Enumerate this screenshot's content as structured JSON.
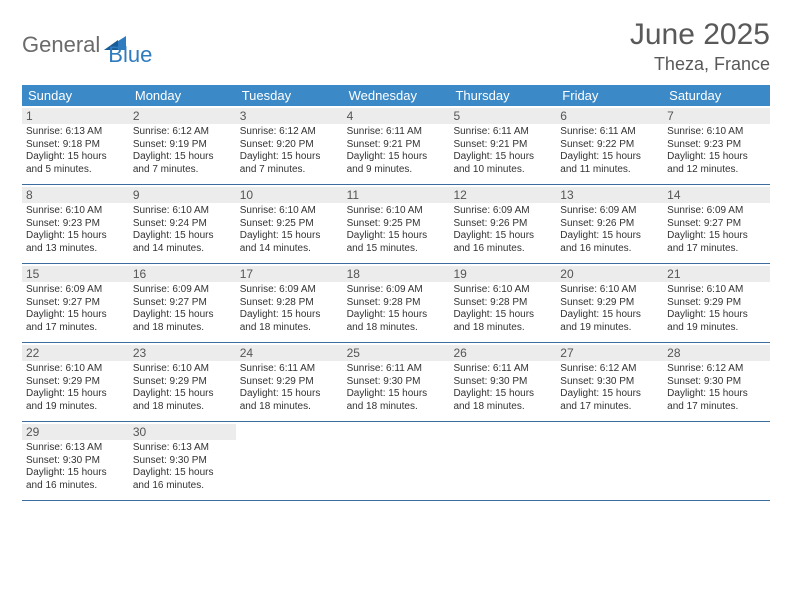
{
  "logo": {
    "text1": "General",
    "text2": "Blue"
  },
  "title": "June 2025",
  "location": "Theza, France",
  "colors": {
    "header_bg": "#3b89c7",
    "header_text": "#ffffff",
    "daynum_bg": "#ececec",
    "rule": "#3b6e9e",
    "title_color": "#595959",
    "logo_gray": "#6b6b6b",
    "logo_blue": "#2f7bbf"
  },
  "weekdays": [
    "Sunday",
    "Monday",
    "Tuesday",
    "Wednesday",
    "Thursday",
    "Friday",
    "Saturday"
  ],
  "weeks": [
    [
      {
        "n": "1",
        "sr": "6:13 AM",
        "ss": "9:18 PM",
        "dl": "15 hours and 5 minutes."
      },
      {
        "n": "2",
        "sr": "6:12 AM",
        "ss": "9:19 PM",
        "dl": "15 hours and 7 minutes."
      },
      {
        "n": "3",
        "sr": "6:12 AM",
        "ss": "9:20 PM",
        "dl": "15 hours and 7 minutes."
      },
      {
        "n": "4",
        "sr": "6:11 AM",
        "ss": "9:21 PM",
        "dl": "15 hours and 9 minutes."
      },
      {
        "n": "5",
        "sr": "6:11 AM",
        "ss": "9:21 PM",
        "dl": "15 hours and 10 minutes."
      },
      {
        "n": "6",
        "sr": "6:11 AM",
        "ss": "9:22 PM",
        "dl": "15 hours and 11 minutes."
      },
      {
        "n": "7",
        "sr": "6:10 AM",
        "ss": "9:23 PM",
        "dl": "15 hours and 12 minutes."
      }
    ],
    [
      {
        "n": "8",
        "sr": "6:10 AM",
        "ss": "9:23 PM",
        "dl": "15 hours and 13 minutes."
      },
      {
        "n": "9",
        "sr": "6:10 AM",
        "ss": "9:24 PM",
        "dl": "15 hours and 14 minutes."
      },
      {
        "n": "10",
        "sr": "6:10 AM",
        "ss": "9:25 PM",
        "dl": "15 hours and 14 minutes."
      },
      {
        "n": "11",
        "sr": "6:10 AM",
        "ss": "9:25 PM",
        "dl": "15 hours and 15 minutes."
      },
      {
        "n": "12",
        "sr": "6:09 AM",
        "ss": "9:26 PM",
        "dl": "15 hours and 16 minutes."
      },
      {
        "n": "13",
        "sr": "6:09 AM",
        "ss": "9:26 PM",
        "dl": "15 hours and 16 minutes."
      },
      {
        "n": "14",
        "sr": "6:09 AM",
        "ss": "9:27 PM",
        "dl": "15 hours and 17 minutes."
      }
    ],
    [
      {
        "n": "15",
        "sr": "6:09 AM",
        "ss": "9:27 PM",
        "dl": "15 hours and 17 minutes."
      },
      {
        "n": "16",
        "sr": "6:09 AM",
        "ss": "9:27 PM",
        "dl": "15 hours and 18 minutes."
      },
      {
        "n": "17",
        "sr": "6:09 AM",
        "ss": "9:28 PM",
        "dl": "15 hours and 18 minutes."
      },
      {
        "n": "18",
        "sr": "6:09 AM",
        "ss": "9:28 PM",
        "dl": "15 hours and 18 minutes."
      },
      {
        "n": "19",
        "sr": "6:10 AM",
        "ss": "9:28 PM",
        "dl": "15 hours and 18 minutes."
      },
      {
        "n": "20",
        "sr": "6:10 AM",
        "ss": "9:29 PM",
        "dl": "15 hours and 19 minutes."
      },
      {
        "n": "21",
        "sr": "6:10 AM",
        "ss": "9:29 PM",
        "dl": "15 hours and 19 minutes."
      }
    ],
    [
      {
        "n": "22",
        "sr": "6:10 AM",
        "ss": "9:29 PM",
        "dl": "15 hours and 19 minutes."
      },
      {
        "n": "23",
        "sr": "6:10 AM",
        "ss": "9:29 PM",
        "dl": "15 hours and 18 minutes."
      },
      {
        "n": "24",
        "sr": "6:11 AM",
        "ss": "9:29 PM",
        "dl": "15 hours and 18 minutes."
      },
      {
        "n": "25",
        "sr": "6:11 AM",
        "ss": "9:30 PM",
        "dl": "15 hours and 18 minutes."
      },
      {
        "n": "26",
        "sr": "6:11 AM",
        "ss": "9:30 PM",
        "dl": "15 hours and 18 minutes."
      },
      {
        "n": "27",
        "sr": "6:12 AM",
        "ss": "9:30 PM",
        "dl": "15 hours and 17 minutes."
      },
      {
        "n": "28",
        "sr": "6:12 AM",
        "ss": "9:30 PM",
        "dl": "15 hours and 17 minutes."
      }
    ],
    [
      {
        "n": "29",
        "sr": "6:13 AM",
        "ss": "9:30 PM",
        "dl": "15 hours and 16 minutes."
      },
      {
        "n": "30",
        "sr": "6:13 AM",
        "ss": "9:30 PM",
        "dl": "15 hours and 16 minutes."
      },
      null,
      null,
      null,
      null,
      null
    ]
  ],
  "labels": {
    "sunrise": "Sunrise:",
    "sunset": "Sunset:",
    "daylight": "Daylight:"
  }
}
